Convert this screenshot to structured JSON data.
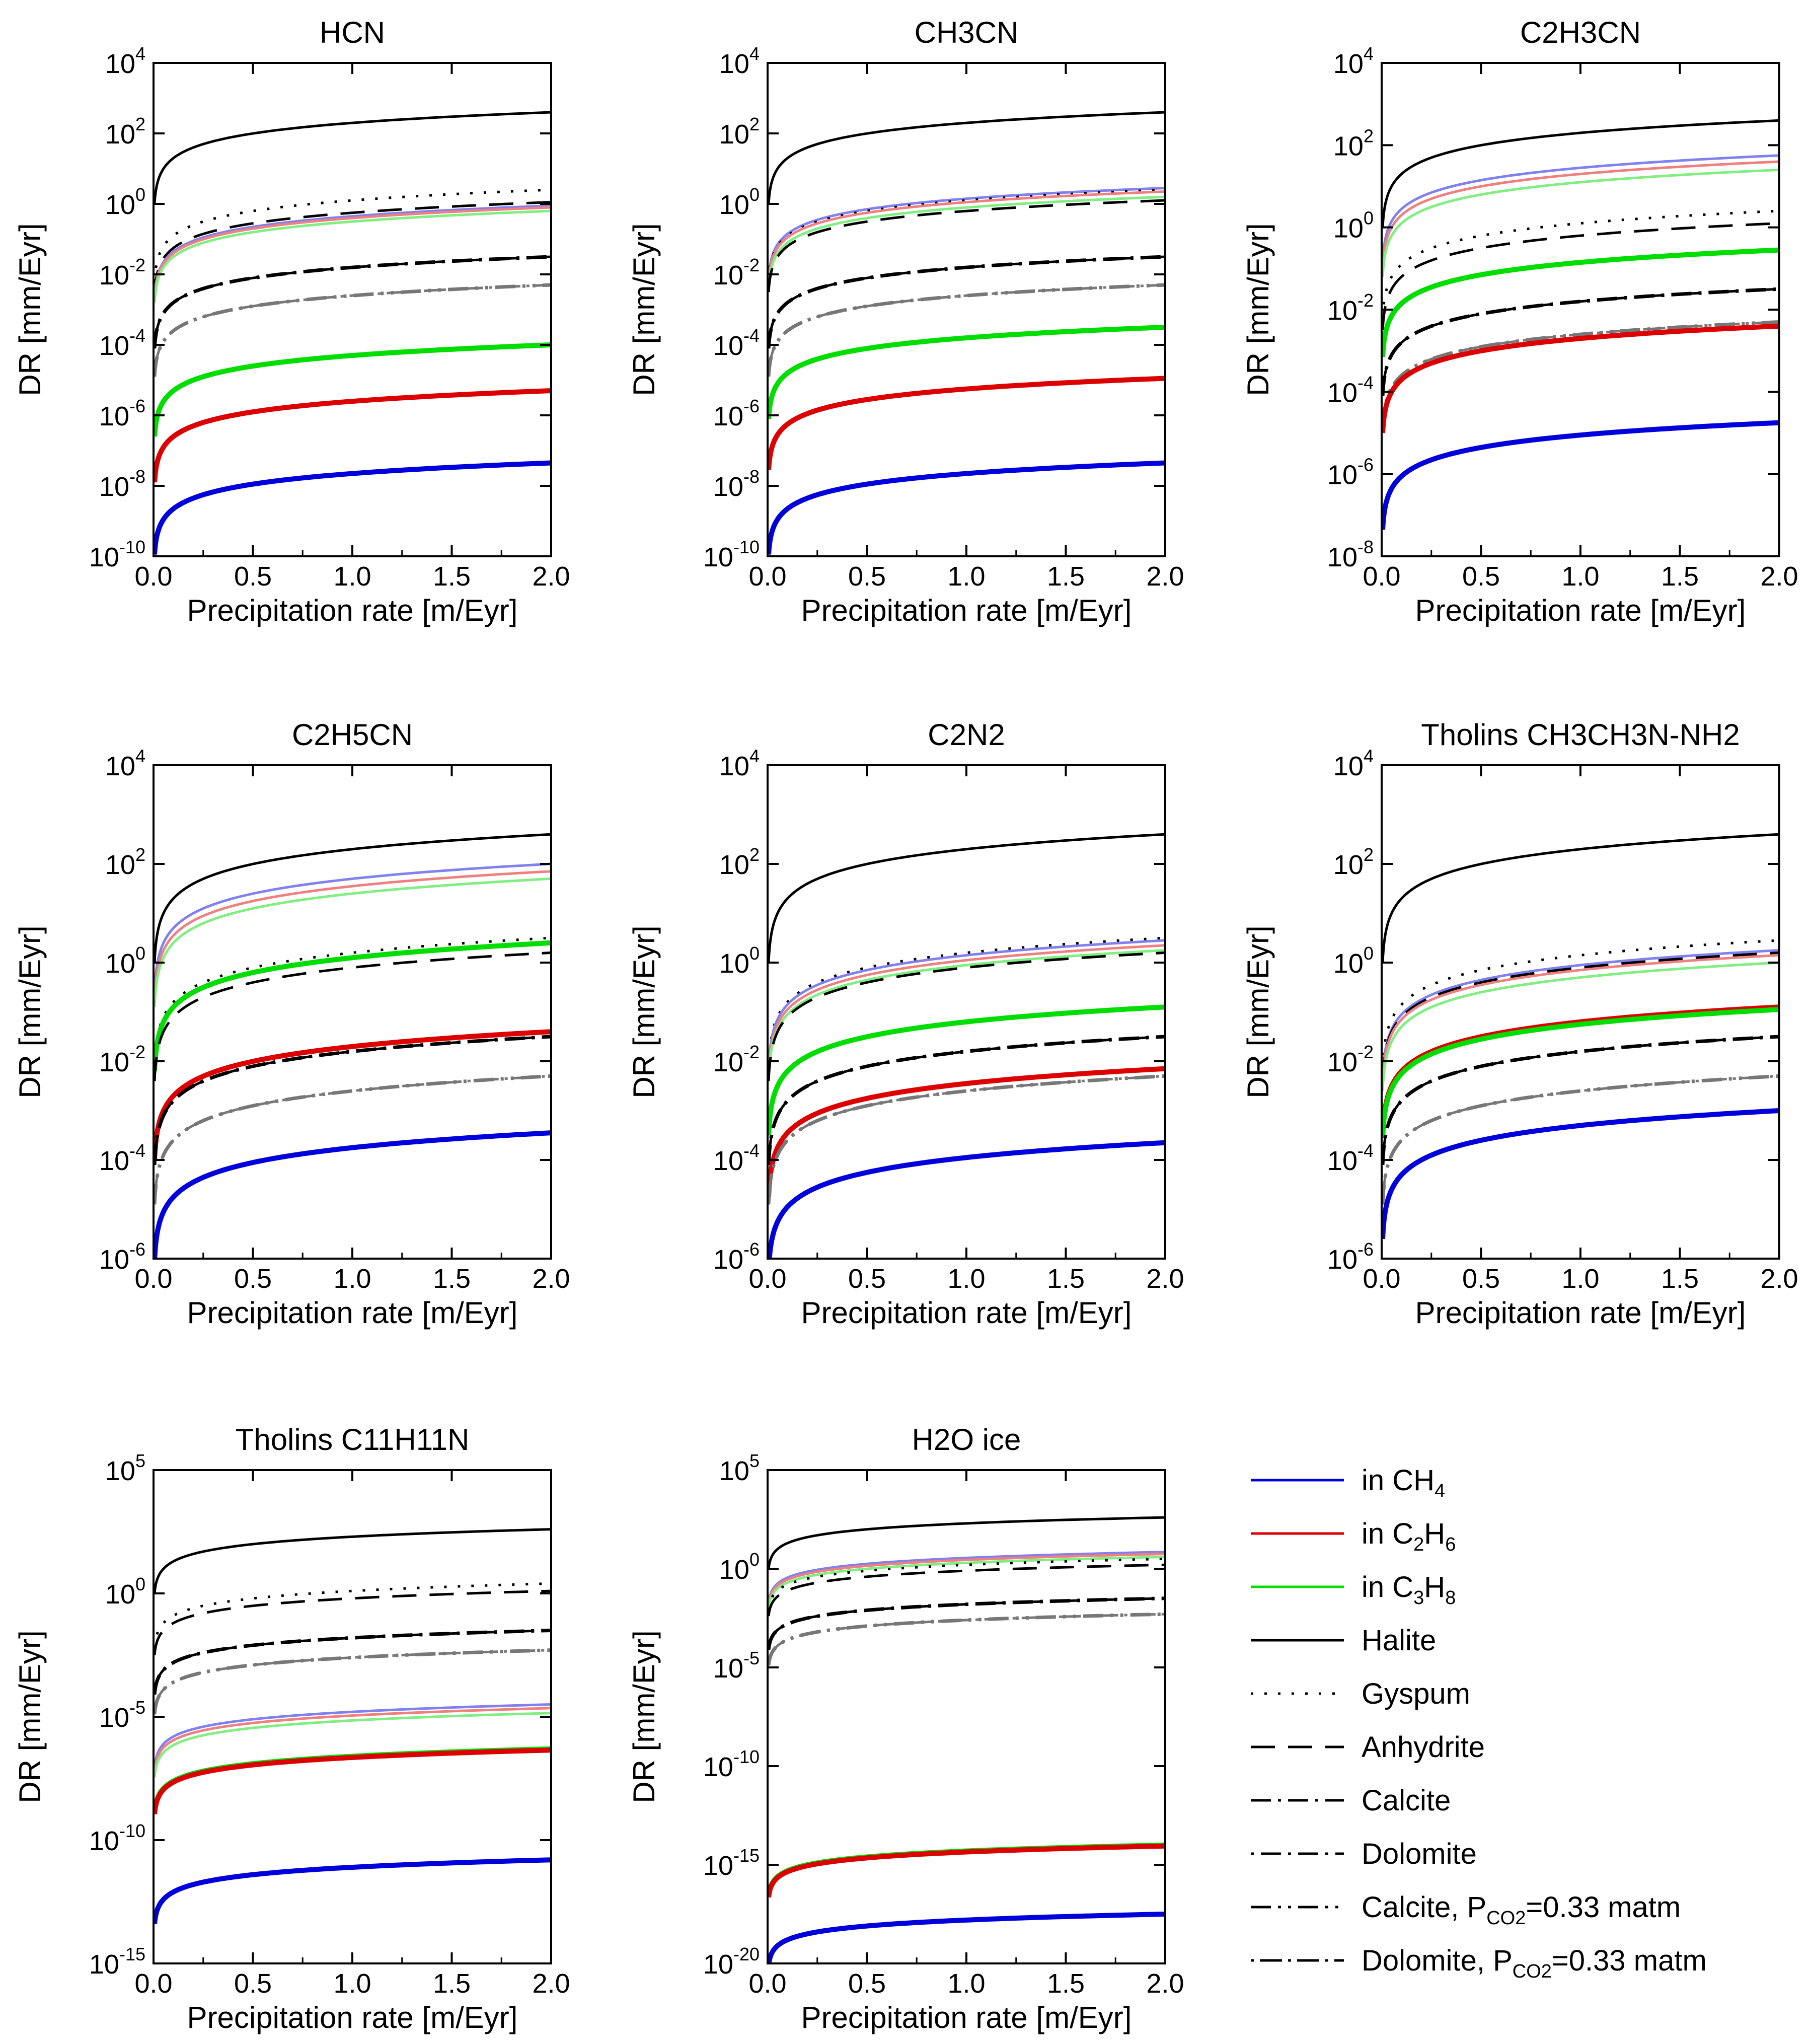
{
  "figure": {
    "xlabel": "Precipitation rate [m/Eyr]",
    "ylabel": "DR [mm/Eyr]",
    "x_ticks": [
      "0.0",
      "0.5",
      "1.0",
      "1.5",
      "2.0"
    ]
  },
  "colors": {
    "ch4": "#0000dd",
    "c2h6": "#dd0000",
    "c3h8": "#00dd00",
    "ch4_light": "#8080ee",
    "c2h6_light": "#ee8080",
    "c3h8_light": "#80ee80",
    "mineral": "#000000",
    "pco2": "#777777"
  },
  "legend": [
    {
      "label": "in CH",
      "sub": "4",
      "tail": "",
      "color": "ch4",
      "dash": "",
      "width": 5
    },
    {
      "label": "in C",
      "sub": "2",
      "mid": "H",
      "sub2": "6",
      "color": "c2h6",
      "dash": "",
      "width": 5
    },
    {
      "label": "in C",
      "sub": "3",
      "mid": "H",
      "sub2": "8",
      "color": "c3h8",
      "dash": "",
      "width": 5
    },
    {
      "label": "Halite",
      "color": "mineral",
      "dash": "",
      "width": 5
    },
    {
      "label": "Gyspum",
      "color": "mineral",
      "dash": "5 22",
      "width": 5
    },
    {
      "label": "Anhydrite",
      "color": "mineral",
      "dash": "48 26",
      "width": 5
    },
    {
      "label": "Calcite",
      "color": "mineral",
      "dash": "40 14 6 14",
      "width": 5
    },
    {
      "label": "Dolomite",
      "color": "mineral",
      "dash": "6 14 40 14",
      "width": 5
    },
    {
      "label": "Calcite, P",
      "sub": "CO2",
      "tail": "=0.33 matm",
      "color": "mineral",
      "dash": "40 14 6 14 6 14",
      "width": 5
    },
    {
      "label": "Dolomite, P",
      "sub": "CO2",
      "tail": "=0.33 matm",
      "color": "mineral",
      "dash": "6 12 44 12",
      "width": 5
    }
  ],
  "chart_data": [
    {
      "type": "line",
      "title": "HCN",
      "ylim_exp": [
        -10,
        4
      ],
      "ytick_exps": [
        -10,
        -8,
        -6,
        -4,
        -2,
        0,
        2,
        4
      ],
      "xlabel": "Precipitation rate [m/Eyr]",
      "ylabel": "DR [mm/Eyr]",
      "series": [
        {
          "name": "Halite",
          "end_exp": 2.6
        },
        {
          "name": "Gyspum",
          "end_exp": 0.4
        },
        {
          "name": "Anhydrite",
          "end_exp": 0.05
        },
        {
          "name": "in CH4 (light)",
          "end_exp": -0.05
        },
        {
          "name": "in C2H6 (light)",
          "end_exp": -0.1
        },
        {
          "name": "in C3H8 (light)",
          "end_exp": -0.2
        },
        {
          "name": "Calcite",
          "end_exp": -1.5
        },
        {
          "name": "Dolomite",
          "end_exp": -1.5
        },
        {
          "name": "Calcite, PCO2=0.33 matm",
          "end_exp": -2.3
        },
        {
          "name": "Dolomite, PCO2=0.33 matm",
          "end_exp": -2.3
        },
        {
          "name": "in C3H8",
          "end_exp": -4.0
        },
        {
          "name": "in C2H6",
          "end_exp": -5.3
        },
        {
          "name": "in CH4",
          "end_exp": -7.35
        }
      ]
    },
    {
      "type": "line",
      "title": "CH3CN",
      "ylim_exp": [
        -10,
        4
      ],
      "ytick_exps": [
        -10,
        -8,
        -6,
        -4,
        -2,
        0,
        2,
        4
      ],
      "xlabel": "Precipitation rate [m/Eyr]",
      "ylabel": "DR [mm/Eyr]",
      "series": [
        {
          "name": "Halite",
          "end_exp": 2.6
        },
        {
          "name": "in CH4 (light)",
          "end_exp": 0.45
        },
        {
          "name": "Gyspum",
          "end_exp": 0.4
        },
        {
          "name": "in C2H6 (light)",
          "end_exp": 0.35
        },
        {
          "name": "in C3H8 (light)",
          "end_exp": 0.2
        },
        {
          "name": "Anhydrite",
          "end_exp": 0.1
        },
        {
          "name": "Calcite",
          "end_exp": -1.5
        },
        {
          "name": "Dolomite",
          "end_exp": -1.5
        },
        {
          "name": "Calcite, PCO2=0.33 matm",
          "end_exp": -2.3
        },
        {
          "name": "Dolomite, PCO2=0.33 matm",
          "end_exp": -2.3
        },
        {
          "name": "in C3H8",
          "end_exp": -3.5
        },
        {
          "name": "in C2H6",
          "end_exp": -4.95
        },
        {
          "name": "in CH4",
          "end_exp": -7.35
        }
      ]
    },
    {
      "type": "line",
      "title": "C2H3CN",
      "ylim_exp": [
        -8,
        4
      ],
      "ytick_exps": [
        -8,
        -6,
        -4,
        -2,
        0,
        2,
        4
      ],
      "xlabel": "Precipitation rate [m/Eyr]",
      "ylabel": "DR [mm/Eyr]",
      "series": [
        {
          "name": "Halite",
          "end_exp": 2.6
        },
        {
          "name": "in CH4 (light)",
          "end_exp": 1.75
        },
        {
          "name": "in C2H6 (light)",
          "end_exp": 1.6
        },
        {
          "name": "in C3H8 (light)",
          "end_exp": 1.4
        },
        {
          "name": "Gyspum",
          "end_exp": 0.4
        },
        {
          "name": "Anhydrite",
          "end_exp": 0.1
        },
        {
          "name": "in C3H8",
          "end_exp": -0.55
        },
        {
          "name": "Calcite",
          "end_exp": -1.5
        },
        {
          "name": "Dolomite",
          "end_exp": -1.5
        },
        {
          "name": "Calcite, PCO2=0.33 matm",
          "end_exp": -2.3
        },
        {
          "name": "Dolomite, PCO2=0.33 matm",
          "end_exp": -2.3
        },
        {
          "name": "in C2H6",
          "end_exp": -2.4
        },
        {
          "name": "in CH4",
          "end_exp": -4.75
        }
      ]
    },
    {
      "type": "line",
      "title": "C2H5CN",
      "ylim_exp": [
        -6,
        4
      ],
      "ytick_exps": [
        -6,
        -4,
        -2,
        0,
        2,
        4
      ],
      "xlabel": "Precipitation rate [m/Eyr]",
      "ylabel": "DR [mm/Eyr]",
      "series": [
        {
          "name": "Halite",
          "end_exp": 2.6
        },
        {
          "name": "in CH4 (light)",
          "end_exp": 2.0
        },
        {
          "name": "in C2H6 (light)",
          "end_exp": 1.85
        },
        {
          "name": "in C3H8 (light)",
          "end_exp": 1.7
        },
        {
          "name": "Gyspum",
          "end_exp": 0.5
        },
        {
          "name": "in C3H8",
          "end_exp": 0.4
        },
        {
          "name": "Anhydrite",
          "end_exp": 0.2
        },
        {
          "name": "in C2H6",
          "end_exp": -1.4
        },
        {
          "name": "Calcite",
          "end_exp": -1.5
        },
        {
          "name": "Dolomite",
          "end_exp": -1.5
        },
        {
          "name": "Calcite, PCO2=0.33 matm",
          "end_exp": -2.3
        },
        {
          "name": "Dolomite, PCO2=0.33 matm",
          "end_exp": -2.3
        },
        {
          "name": "in CH4",
          "end_exp": -3.45
        }
      ]
    },
    {
      "type": "line",
      "title": "C2N2",
      "ylim_exp": [
        -6,
        4
      ],
      "ytick_exps": [
        -6,
        -4,
        -2,
        0,
        2,
        4
      ],
      "xlabel": "Precipitation rate [m/Eyr]",
      "ylabel": "DR [mm/Eyr]",
      "series": [
        {
          "name": "Halite",
          "end_exp": 2.6
        },
        {
          "name": "Gyspum",
          "end_exp": 0.5
        },
        {
          "name": "in CH4 (light)",
          "end_exp": 0.45
        },
        {
          "name": "in C2H6 (light)",
          "end_exp": 0.35
        },
        {
          "name": "in C3H8 (light)",
          "end_exp": 0.25
        },
        {
          "name": "Anhydrite",
          "end_exp": 0.2
        },
        {
          "name": "in C3H8",
          "end_exp": -0.9
        },
        {
          "name": "Calcite",
          "end_exp": -1.5
        },
        {
          "name": "Dolomite",
          "end_exp": -1.5
        },
        {
          "name": "in C2H6",
          "end_exp": -2.15
        },
        {
          "name": "Calcite, PCO2=0.33 matm",
          "end_exp": -2.3
        },
        {
          "name": "Dolomite, PCO2=0.33 matm",
          "end_exp": -2.3
        },
        {
          "name": "in CH4",
          "end_exp": -3.65
        }
      ]
    },
    {
      "type": "line",
      "title": "Tholins CH3CH3N-NH2",
      "ylim_exp": [
        -6,
        4
      ],
      "ytick_exps": [
        -6,
        -4,
        -2,
        0,
        2,
        4
      ],
      "xlabel": "Precipitation rate [m/Eyr]",
      "ylabel": "DR [mm/Eyr]",
      "series": [
        {
          "name": "Halite",
          "end_exp": 2.6
        },
        {
          "name": "Gyspum",
          "end_exp": 0.45
        },
        {
          "name": "in CH4 (light)",
          "end_exp": 0.25
        },
        {
          "name": "Anhydrite",
          "end_exp": 0.2
        },
        {
          "name": "in C2H6 (light)",
          "end_exp": 0.15
        },
        {
          "name": "in C3H8 (light)",
          "end_exp": 0.0
        },
        {
          "name": "in C2H6",
          "end_exp": -0.9
        },
        {
          "name": "in C3H8",
          "end_exp": -0.95
        },
        {
          "name": "Calcite",
          "end_exp": -1.5
        },
        {
          "name": "Dolomite",
          "end_exp": -1.5
        },
        {
          "name": "Calcite, PCO2=0.33 matm",
          "end_exp": -2.3
        },
        {
          "name": "Dolomite, PCO2=0.33 matm",
          "end_exp": -2.3
        },
        {
          "name": "in CH4",
          "end_exp": -3.0
        }
      ]
    },
    {
      "type": "line",
      "title": "Tholins C11H11N",
      "ylim_exp": [
        -15,
        5
      ],
      "ytick_exps": [
        -15,
        -10,
        -5,
        0,
        5
      ],
      "xlabel": "Precipitation rate [m/Eyr]",
      "ylabel": "DR [mm/Eyr]",
      "series": [
        {
          "name": "Halite",
          "end_exp": 2.6
        },
        {
          "name": "Gyspum",
          "end_exp": 0.4
        },
        {
          "name": "Anhydrite",
          "end_exp": 0.1
        },
        {
          "name": "Calcite",
          "end_exp": -1.5
        },
        {
          "name": "Dolomite",
          "end_exp": -1.5
        },
        {
          "name": "Calcite, PCO2=0.33 matm",
          "end_exp": -2.3
        },
        {
          "name": "Dolomite, PCO2=0.33 matm",
          "end_exp": -2.3
        },
        {
          "name": "in CH4 (light)",
          "end_exp": -4.5
        },
        {
          "name": "in C2H6 (light)",
          "end_exp": -4.65
        },
        {
          "name": "in C3H8 (light)",
          "end_exp": -4.85
        },
        {
          "name": "in C3H8",
          "end_exp": -6.3
        },
        {
          "name": "in C2H6",
          "end_exp": -6.35
        },
        {
          "name": "in CH4",
          "end_exp": -10.8
        }
      ]
    },
    {
      "type": "line",
      "title": "H2O ice",
      "ylim_exp": [
        -20,
        5
      ],
      "ytick_exps": [
        -20,
        -15,
        -10,
        -5,
        0,
        5
      ],
      "xlabel": "Precipitation rate [m/Eyr]",
      "ylabel": "DR [mm/Eyr]",
      "series": [
        {
          "name": "Halite",
          "end_exp": 2.6
        },
        {
          "name": "in CH4 (light)",
          "end_exp": 0.85
        },
        {
          "name": "in C2H6 (light)",
          "end_exp": 0.75
        },
        {
          "name": "in C3H8 (light)",
          "end_exp": 0.6
        },
        {
          "name": "Gyspum",
          "end_exp": 0.5
        },
        {
          "name": "Anhydrite",
          "end_exp": 0.2
        },
        {
          "name": "Calcite",
          "end_exp": -1.5
        },
        {
          "name": "Dolomite",
          "end_exp": -1.5
        },
        {
          "name": "Calcite, PCO2=0.33 matm",
          "end_exp": -2.3
        },
        {
          "name": "Dolomite, PCO2=0.33 matm",
          "end_exp": -2.3
        },
        {
          "name": "in C3H8",
          "end_exp": -14.0
        },
        {
          "name": "in C2H6",
          "end_exp": -14.05
        },
        {
          "name": "in CH4",
          "end_exp": -17.5
        }
      ]
    }
  ]
}
